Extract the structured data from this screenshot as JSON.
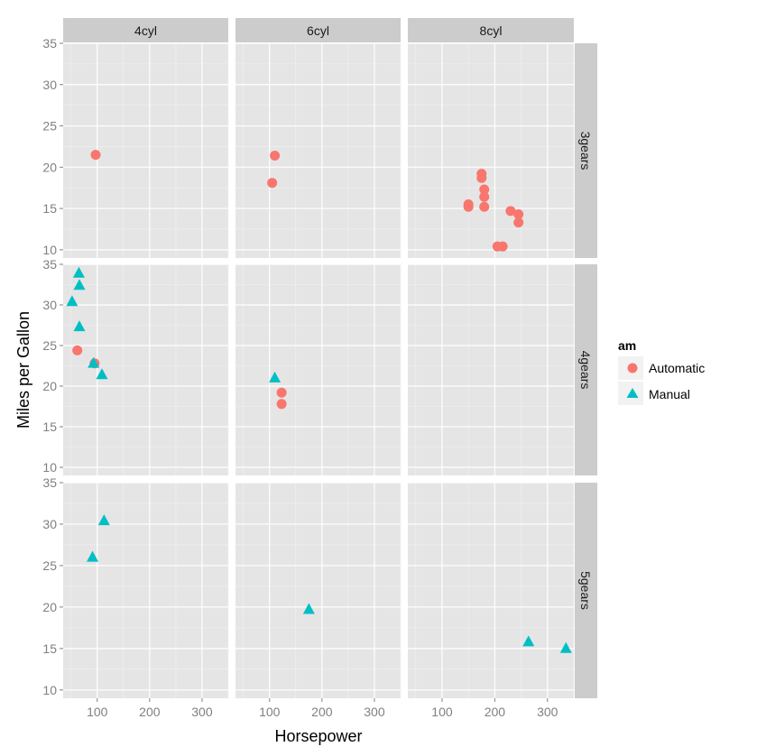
{
  "chart_data": {
    "type": "scatter",
    "title": "",
    "xlabel": "Horsepower",
    "ylabel": "Miles per Gallon",
    "xlim": [
      35,
      350
    ],
    "ylim": [
      9,
      35
    ],
    "x_ticks": [
      100,
      200,
      300
    ],
    "y_ticks": [
      10,
      15,
      20,
      25,
      30,
      35
    ],
    "grid": true,
    "facet_cols": [
      "4cyl",
      "6cyl",
      "8cyl"
    ],
    "facet_rows": [
      "3gears",
      "4gears",
      "5gears"
    ],
    "legend": {
      "title": "am",
      "position": "right",
      "entries": [
        {
          "label": "Automatic",
          "shape": "circle",
          "color": "#F8766D"
        },
        {
          "label": "Manual",
          "shape": "triangle",
          "color": "#00BFC4"
        }
      ]
    },
    "colors": {
      "panel_bg": "#E5E5E5",
      "strip_bg": "#CCCCCC",
      "grid": "#FFFFFF"
    },
    "points": [
      {
        "col": "4cyl",
        "row": "3gears",
        "am": "Automatic",
        "x": 97,
        "y": 21.5
      },
      {
        "col": "6cyl",
        "row": "3gears",
        "am": "Automatic",
        "x": 110,
        "y": 21.4
      },
      {
        "col": "6cyl",
        "row": "3gears",
        "am": "Automatic",
        "x": 105,
        "y": 18.1
      },
      {
        "col": "8cyl",
        "row": "3gears",
        "am": "Automatic",
        "x": 175,
        "y": 18.7
      },
      {
        "col": "8cyl",
        "row": "3gears",
        "am": "Automatic",
        "x": 245,
        "y": 14.3
      },
      {
        "col": "8cyl",
        "row": "3gears",
        "am": "Automatic",
        "x": 180,
        "y": 16.4
      },
      {
        "col": "8cyl",
        "row": "3gears",
        "am": "Automatic",
        "x": 180,
        "y": 17.3
      },
      {
        "col": "8cyl",
        "row": "3gears",
        "am": "Automatic",
        "x": 180,
        "y": 15.2
      },
      {
        "col": "8cyl",
        "row": "3gears",
        "am": "Automatic",
        "x": 205,
        "y": 10.4
      },
      {
        "col": "8cyl",
        "row": "3gears",
        "am": "Automatic",
        "x": 215,
        "y": 10.4
      },
      {
        "col": "8cyl",
        "row": "3gears",
        "am": "Automatic",
        "x": 230,
        "y": 14.7
      },
      {
        "col": "8cyl",
        "row": "3gears",
        "am": "Automatic",
        "x": 150,
        "y": 15.5
      },
      {
        "col": "8cyl",
        "row": "3gears",
        "am": "Automatic",
        "x": 150,
        "y": 15.2
      },
      {
        "col": "8cyl",
        "row": "3gears",
        "am": "Automatic",
        "x": 245,
        "y": 13.3
      },
      {
        "col": "8cyl",
        "row": "3gears",
        "am": "Automatic",
        "x": 175,
        "y": 19.2
      },
      {
        "col": "4cyl",
        "row": "4gears",
        "am": "Automatic",
        "x": 62,
        "y": 24.4
      },
      {
        "col": "4cyl",
        "row": "4gears",
        "am": "Automatic",
        "x": 95,
        "y": 22.8
      },
      {
        "col": "4cyl",
        "row": "4gears",
        "am": "Manual",
        "x": 93,
        "y": 22.8
      },
      {
        "col": "4cyl",
        "row": "4gears",
        "am": "Manual",
        "x": 66,
        "y": 32.4
      },
      {
        "col": "4cyl",
        "row": "4gears",
        "am": "Manual",
        "x": 52,
        "y": 30.4
      },
      {
        "col": "4cyl",
        "row": "4gears",
        "am": "Manual",
        "x": 65,
        "y": 33.9
      },
      {
        "col": "4cyl",
        "row": "4gears",
        "am": "Manual",
        "x": 66,
        "y": 27.3
      },
      {
        "col": "4cyl",
        "row": "4gears",
        "am": "Manual",
        "x": 109,
        "y": 21.4
      },
      {
        "col": "6cyl",
        "row": "4gears",
        "am": "Automatic",
        "x": 123,
        "y": 19.2
      },
      {
        "col": "6cyl",
        "row": "4gears",
        "am": "Automatic",
        "x": 123,
        "y": 17.8
      },
      {
        "col": "6cyl",
        "row": "4gears",
        "am": "Manual",
        "x": 110,
        "y": 21.0
      },
      {
        "col": "4cyl",
        "row": "5gears",
        "am": "Manual",
        "x": 91,
        "y": 26.0
      },
      {
        "col": "4cyl",
        "row": "5gears",
        "am": "Manual",
        "x": 113,
        "y": 30.4
      },
      {
        "col": "6cyl",
        "row": "5gears",
        "am": "Manual",
        "x": 175,
        "y": 19.7
      },
      {
        "col": "8cyl",
        "row": "5gears",
        "am": "Manual",
        "x": 264,
        "y": 15.8
      },
      {
        "col": "8cyl",
        "row": "5gears",
        "am": "Manual",
        "x": 335,
        "y": 15.0
      }
    ]
  }
}
